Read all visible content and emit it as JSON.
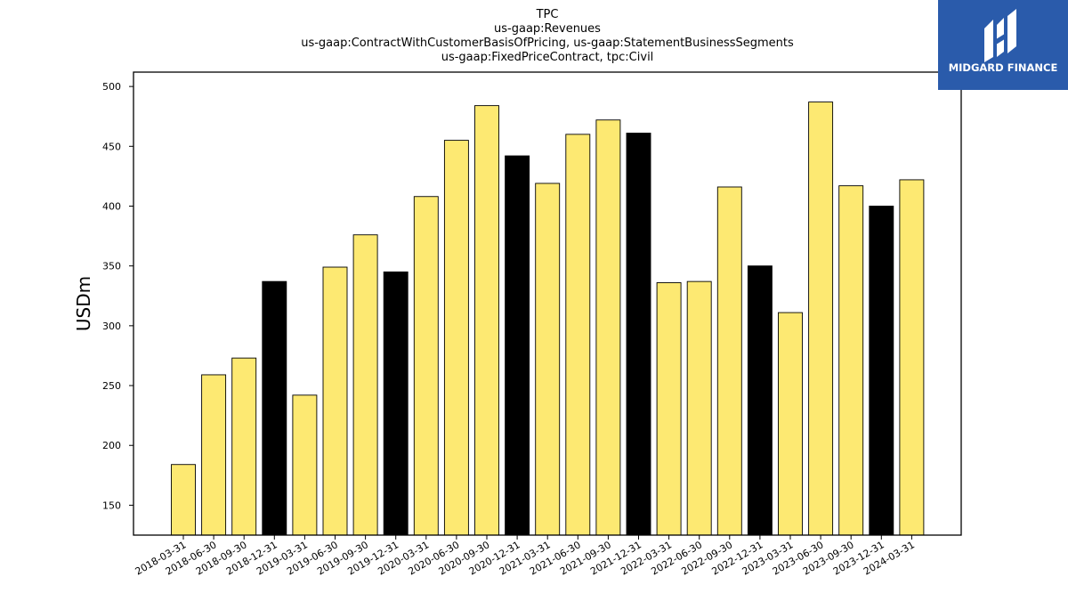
{
  "logo": {
    "text": "MIDGARD FINANCE",
    "background": "#2a5bab"
  },
  "chart_data": {
    "type": "bar",
    "title_lines": [
      "TPC",
      "us-gaap:Revenues",
      "us-gaap:ContractWithCustomerBasisOfPricing, us-gaap:StatementBusinessSegments",
      "us-gaap:FixedPriceContract, tpc:Civil"
    ],
    "xlabel": "",
    "ylabel": "USDm",
    "ylim": [
      125,
      512
    ],
    "yticks": [
      150,
      200,
      250,
      300,
      350,
      400,
      450,
      500
    ],
    "grid": false,
    "categories": [
      "2018-03-31",
      "2018-06-30",
      "2018-09-30",
      "2018-12-31",
      "2019-03-31",
      "2019-06-30",
      "2019-09-30",
      "2019-12-31",
      "2020-03-31",
      "2020-06-30",
      "2020-09-30",
      "2020-12-31",
      "2021-03-31",
      "2021-06-30",
      "2021-09-30",
      "2021-12-31",
      "2022-03-31",
      "2022-06-30",
      "2022-09-30",
      "2022-12-31",
      "2023-03-31",
      "2023-06-30",
      "2023-09-30",
      "2023-12-31",
      "2024-03-31"
    ],
    "values": [
      184,
      259,
      273,
      337,
      242,
      349,
      376,
      345,
      408,
      455,
      484,
      442,
      419,
      460,
      472,
      461,
      336,
      337,
      416,
      350,
      311,
      487,
      417,
      400,
      422
    ],
    "colors": {
      "quarter": "#fde972",
      "year_end": "#000000",
      "edge": "#000000"
    }
  }
}
